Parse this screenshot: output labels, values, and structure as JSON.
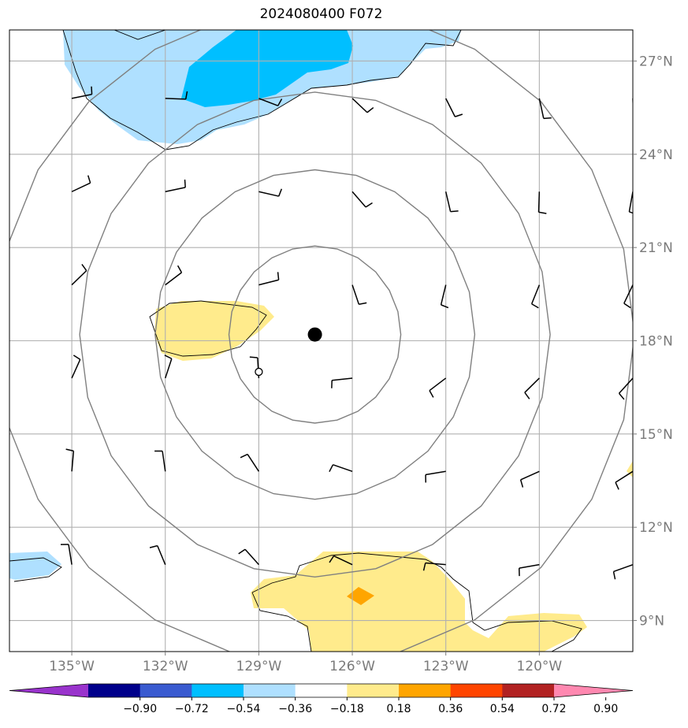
{
  "title": "2024080400 F072",
  "map": {
    "lon_range": [
      -137.0,
      -117.0
    ],
    "lat_range": [
      8.0,
      28.0
    ],
    "lon_ticks": [
      {
        "value": -135,
        "label": "135°W"
      },
      {
        "value": -132,
        "label": "132°W"
      },
      {
        "value": -129,
        "label": "129°W"
      },
      {
        "value": -126,
        "label": "126°W"
      },
      {
        "value": -123,
        "label": "123°W"
      },
      {
        "value": -120,
        "label": "120°W"
      }
    ],
    "lat_ticks": [
      {
        "value": 9,
        "label": "9°N"
      },
      {
        "value": 12,
        "label": "12°N"
      },
      {
        "value": 15,
        "label": "15°N"
      },
      {
        "value": 18,
        "label": "18°N"
      },
      {
        "value": 21,
        "label": "21°N"
      },
      {
        "value": 24,
        "label": "24°N"
      },
      {
        "value": 27,
        "label": "27°N"
      }
    ],
    "storm_center": {
      "lon": -127.2,
      "lat": 18.2
    },
    "small_marker": {
      "lon": -129.0,
      "lat": 17.0
    },
    "range_rings_deg": [
      2.85,
      5.3,
      7.8,
      10.6
    ],
    "ring_color": "#808080",
    "grid_color": "#b0b0b0"
  },
  "colorbar": {
    "colors": [
      "#9933cc",
      "#00008b",
      "#3a5bd0",
      "#00bfff",
      "#afe0ff",
      "#ffffff",
      "#ffeb8c",
      "#ffa500",
      "#ff4500",
      "#b22222",
      "#ff88b0"
    ],
    "tick_labels": [
      "−0.90",
      "−0.72",
      "−0.54",
      "−0.36",
      "−0.18",
      "0.18",
      "0.36",
      "0.54",
      "0.72",
      "0.90"
    ]
  },
  "shading_colors": {
    "light_blue": "#afe0ff",
    "deep_sky_blue": "#00bfff",
    "light_yellow": "#ffeb8c",
    "orange": "#ffa500"
  }
}
